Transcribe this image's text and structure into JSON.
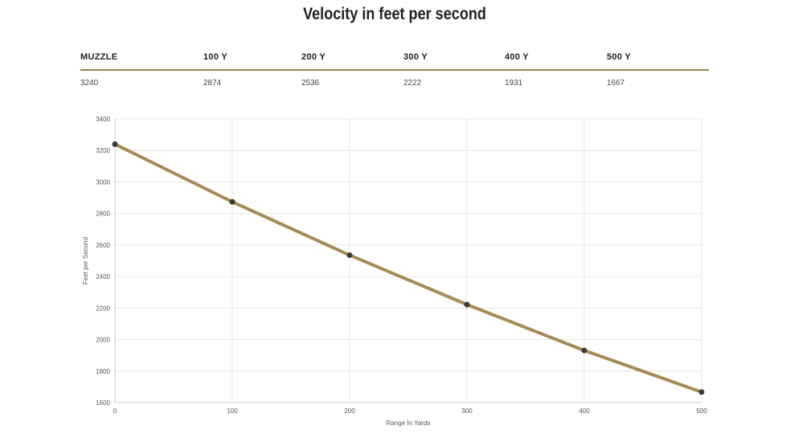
{
  "title": "Velocity in feet per second",
  "table": {
    "headers": [
      "MUZZLE",
      "100 Y",
      "200 Y",
      "300 Y",
      "400 Y",
      "500 Y"
    ],
    "values": [
      "3240",
      "2874",
      "2536",
      "2222",
      "1931",
      "1667"
    ]
  },
  "colors": {
    "line": "#a68b55",
    "point": "#3d3a33",
    "rule": "#9c8055",
    "grid": "#e6e6e6"
  },
  "chart_data": {
    "type": "line",
    "title": "",
    "xlabel": "Range In Yards",
    "ylabel": "Feet per Second",
    "x": [
      0,
      100,
      200,
      300,
      400,
      500
    ],
    "series": [
      {
        "values": [
          3240,
          2874,
          2536,
          2222,
          1931,
          1667
        ]
      }
    ],
    "xlim": [
      0,
      500
    ],
    "ylim": [
      1600,
      3400
    ],
    "xticks": [
      "0",
      "100",
      "200",
      "300",
      "400",
      "500"
    ],
    "yticks": [
      "1600",
      "1800",
      "2000",
      "2200",
      "2400",
      "2600",
      "2800",
      "3000",
      "3200",
      "3400"
    ],
    "grid": true,
    "legend": "none"
  }
}
